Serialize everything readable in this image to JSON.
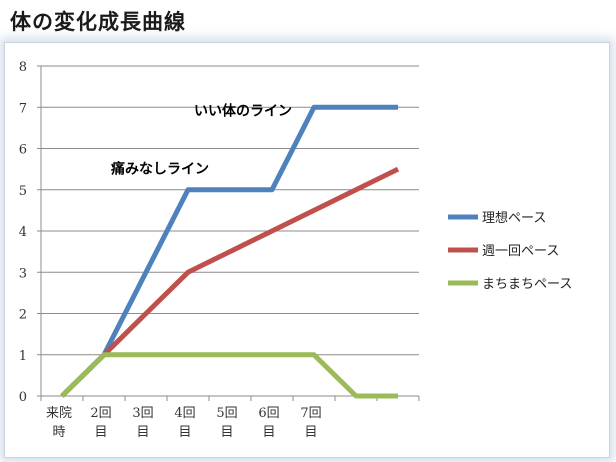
{
  "page": {
    "title": "体の変化成長曲線"
  },
  "chart_data": {
    "type": "line",
    "title": "",
    "xlabel": "",
    "ylabel": "",
    "categories": [
      [
        "来院",
        "時"
      ],
      [
        "2回",
        "目"
      ],
      [
        "3回",
        "目"
      ],
      [
        "4回",
        "目"
      ],
      [
        "5回",
        "目"
      ],
      [
        "6回",
        "目"
      ],
      [
        "7回",
        "目"
      ],
      [
        "",
        ""
      ],
      [
        "",
        ""
      ]
    ],
    "ylim": [
      0,
      8
    ],
    "yticks": [
      0,
      1,
      2,
      3,
      4,
      5,
      6,
      7,
      8
    ],
    "grid": true,
    "legend_position": "right",
    "series": [
      {
        "name": "理想ペース",
        "color": "#4f81bd",
        "values": [
          0,
          1,
          3,
          5,
          5,
          5,
          7,
          7,
          7
        ]
      },
      {
        "name": "週一回ペース",
        "color": "#c0504d",
        "values": [
          0,
          1,
          2,
          3,
          3.5,
          4,
          4.5,
          5,
          5.5
        ]
      },
      {
        "name": "まちまちペース",
        "color": "#9bbb59",
        "values": [
          0,
          1,
          1,
          1,
          1,
          1,
          1,
          0,
          0
        ]
      }
    ],
    "annotations": [
      {
        "text": "いい体のライン",
        "series": "理想ペース"
      },
      {
        "text": "痛みなしライン",
        "series": "理想ペース"
      }
    ]
  }
}
